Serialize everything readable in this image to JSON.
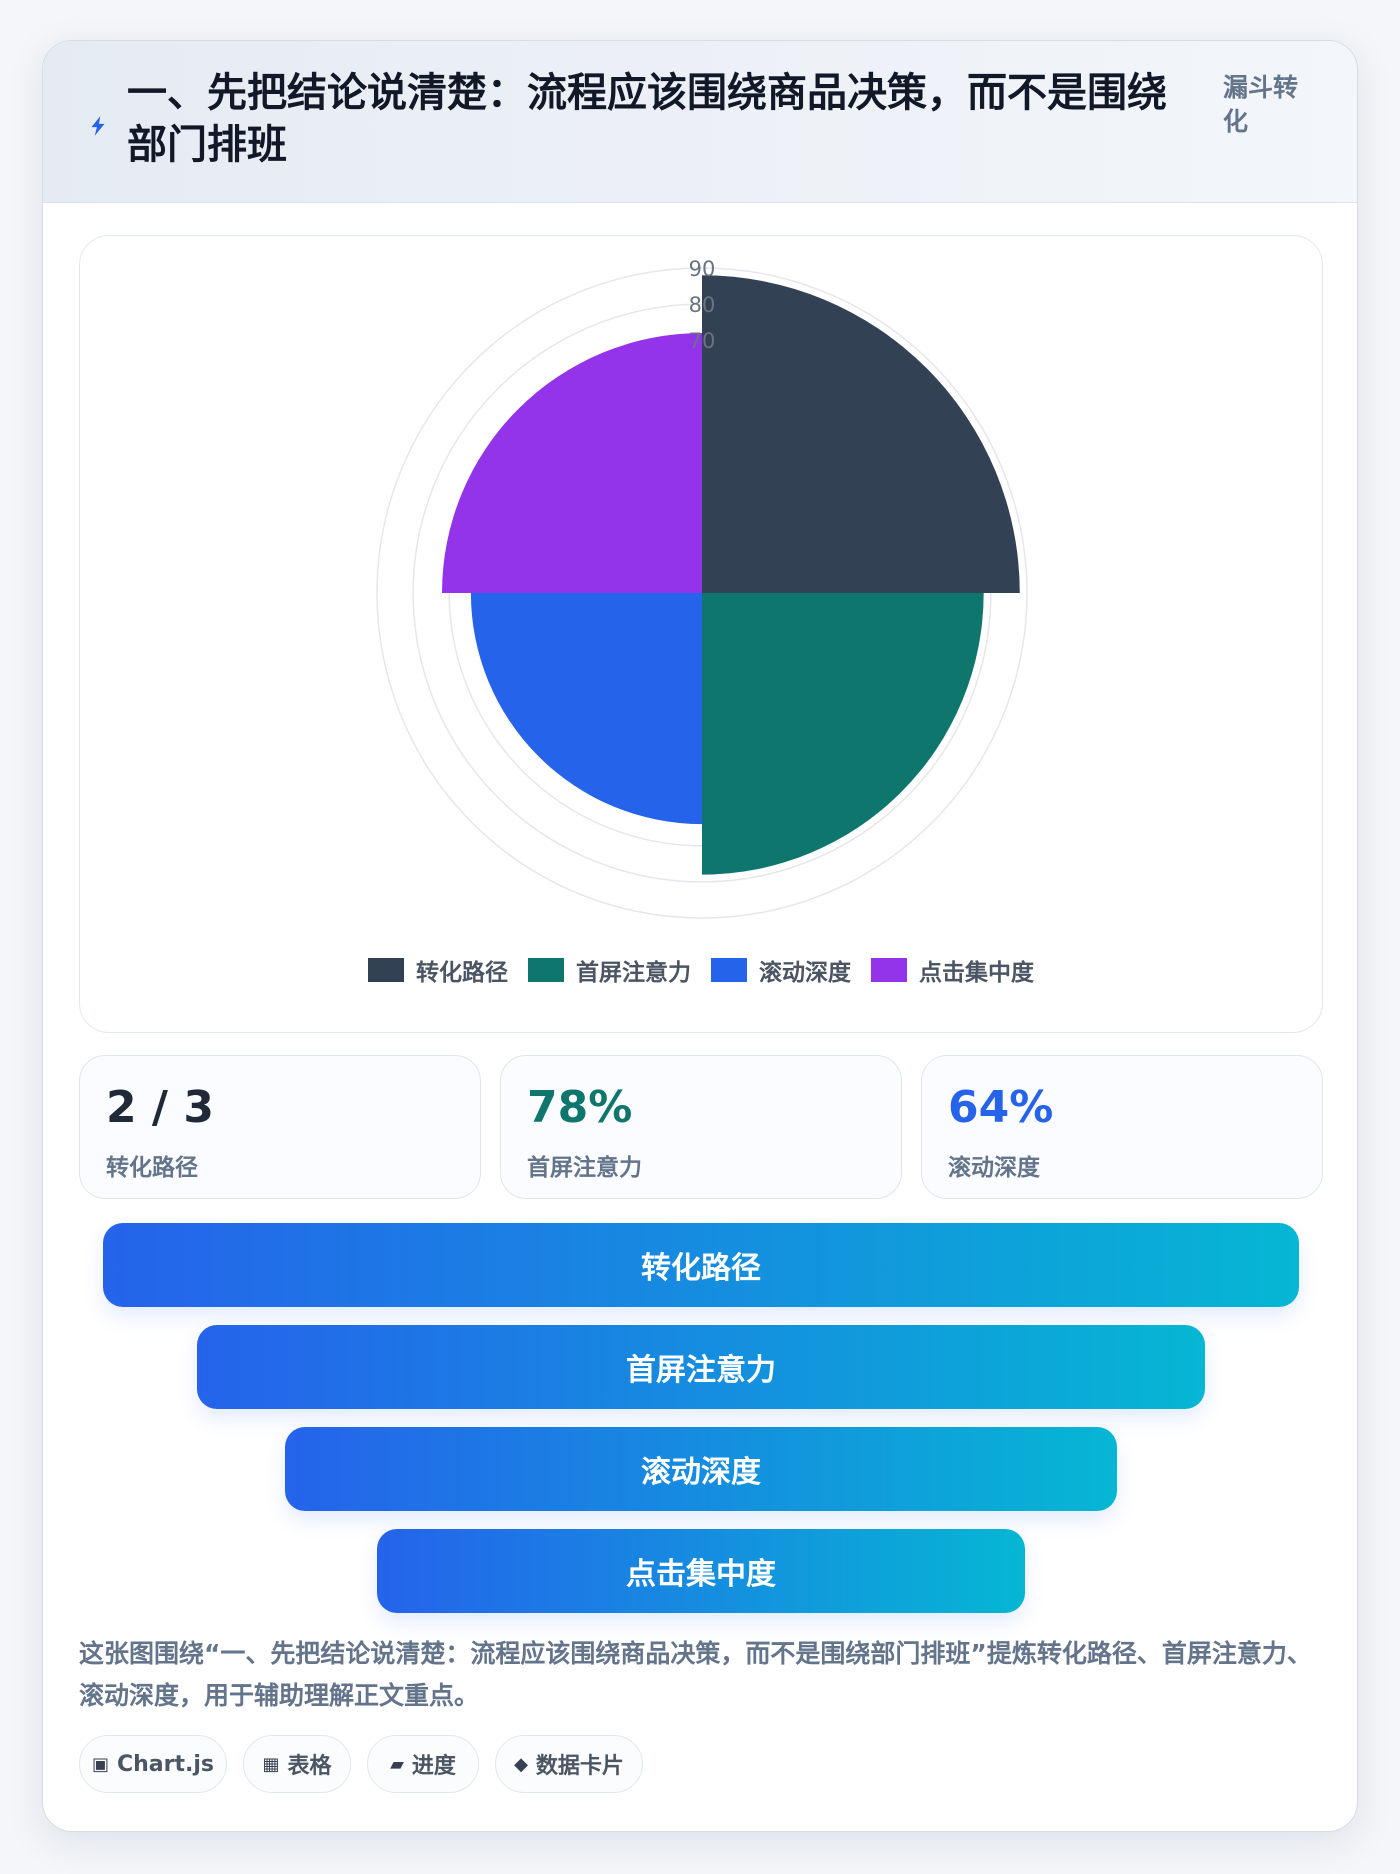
{
  "header": {
    "title": "一、先把结论说清楚：流程应该围绕商品决策，而不是围绕部门排班",
    "tag": "漏斗转化",
    "icon": "lightning-icon"
  },
  "chart_data": {
    "type": "polarArea",
    "categories": [
      "转化路径",
      "首屏注意力",
      "滚动深度",
      "点击集中度"
    ],
    "values": [
      88,
      78,
      64,
      72
    ],
    "colors": [
      "#334155",
      "#0f766e",
      "#2563eb",
      "#9333ea"
    ],
    "radial_max": 90,
    "radial_ticks": [
      70,
      80,
      90
    ],
    "legend_position": "bottom",
    "title": "",
    "xlabel": "",
    "ylabel": ""
  },
  "kpis": [
    {
      "value": "2 / 3",
      "label": "转化路径",
      "color": "#1f2937"
    },
    {
      "value": "78%",
      "label": "首屏注意力",
      "color": "#0f766e"
    },
    {
      "value": "64%",
      "label": "滚动深度",
      "color": "#2563eb"
    }
  ],
  "funnel": {
    "stages": [
      "转化路径",
      "首屏注意力",
      "滚动深度",
      "点击集中度"
    ]
  },
  "note": "这张图围绕“一、先把结论说清楚：流程应该围绕商品决策，而不是围绕部门排班”提炼转化路径、首屏注意力、滚动深度，用于辅助理解正文重点。",
  "chips": [
    {
      "icon": "chip-square-icon",
      "glyph": "▣",
      "label": "Chart.js"
    },
    {
      "icon": "table-icon",
      "glyph": "▦",
      "label": "表格"
    },
    {
      "icon": "progress-icon",
      "glyph": "▰",
      "label": "进度"
    },
    {
      "icon": "diamond-icon",
      "glyph": "◆",
      "label": "数据卡片"
    }
  ]
}
